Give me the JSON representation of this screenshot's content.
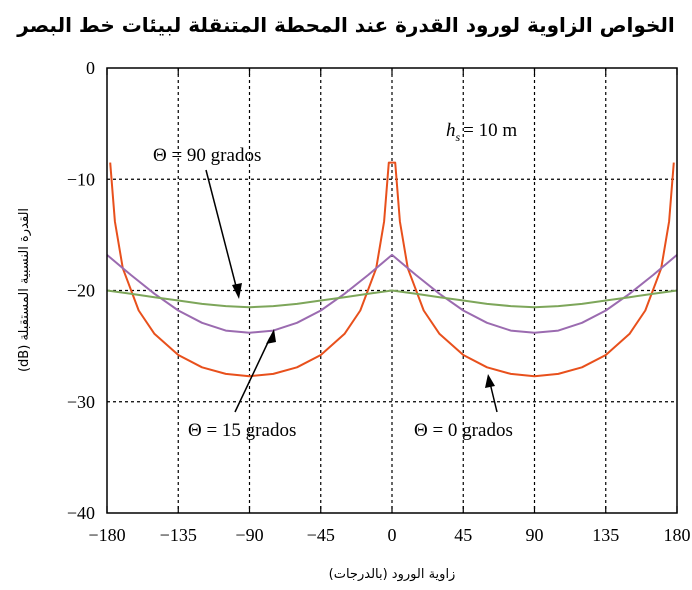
{
  "chart_data": {
    "type": "line",
    "title": "الخواص الزاوية لورود القدرة عند المحطة المتنقلة لبيئات خط البصر",
    "xlabel": "زاوية الورود (بالدرجات)",
    "ylabel": "القدرة النسبية المستقبلة (dB)",
    "xlim": [
      -180,
      180
    ],
    "ylim": [
      -40,
      0
    ],
    "xticks": [
      -180,
      -135,
      -90,
      -45,
      0,
      45,
      90,
      135,
      180
    ],
    "xtick_labels": [
      "−180",
      "−135",
      "−90",
      "−45",
      "0",
      "45",
      "90",
      "135",
      "180"
    ],
    "yticks": [
      0,
      -10,
      -20,
      -30,
      -40
    ],
    "ytick_labels": [
      "0",
      "−10",
      "−20",
      "−30",
      "−40"
    ],
    "grid": true,
    "series": [
      {
        "name": "Θ = 0 grados",
        "color": "#e8501c",
        "x": [
          -178,
          -175,
          -170,
          -160,
          -150,
          -135,
          -120,
          -105,
          -90,
          -75,
          -60,
          -45,
          -30,
          -20,
          -10,
          -5,
          -2,
          2,
          5,
          10,
          20,
          30,
          45,
          60,
          75,
          90,
          105,
          120,
          135,
          150,
          160,
          170,
          175,
          178
        ],
        "y": [
          -8.5,
          -13.8,
          -18.0,
          -21.8,
          -23.9,
          -25.8,
          -26.9,
          -27.5,
          -27.7,
          -27.5,
          -26.9,
          -25.8,
          -23.9,
          -21.8,
          -18.0,
          -13.8,
          -8.5,
          -8.5,
          -13.8,
          -18.0,
          -21.8,
          -23.9,
          -25.8,
          -26.9,
          -27.5,
          -27.7,
          -27.5,
          -26.9,
          -25.8,
          -23.9,
          -21.8,
          -18.0,
          -13.8,
          -8.5
        ]
      },
      {
        "name": "Θ = 15 grados",
        "color": "#9b6bb0",
        "x": [
          -180,
          -165,
          -150,
          -135,
          -120,
          -105,
          -90,
          -75,
          -60,
          -45,
          -30,
          -15,
          0,
          15,
          30,
          45,
          60,
          75,
          90,
          105,
          120,
          135,
          150,
          165,
          180
        ],
        "y": [
          -16.8,
          -18.6,
          -20.3,
          -21.8,
          -22.9,
          -23.6,
          -23.8,
          -23.6,
          -22.9,
          -21.8,
          -20.3,
          -18.6,
          -16.8,
          -18.6,
          -20.3,
          -21.8,
          -22.9,
          -23.6,
          -23.8,
          -23.6,
          -22.9,
          -21.8,
          -20.3,
          -18.6,
          -16.8
        ]
      },
      {
        "name": "Θ = 90 grados",
        "color": "#7da65a",
        "x": [
          -180,
          -165,
          -150,
          -135,
          -120,
          -105,
          -90,
          -75,
          -60,
          -45,
          -30,
          -15,
          0,
          15,
          30,
          45,
          60,
          75,
          90,
          105,
          120,
          135,
          150,
          165,
          180
        ],
        "y": [
          -20.0,
          -20.3,
          -20.6,
          -20.9,
          -21.2,
          -21.4,
          -21.5,
          -21.4,
          -21.2,
          -20.9,
          -20.6,
          -20.3,
          -20.0,
          -20.3,
          -20.6,
          -20.9,
          -21.2,
          -21.4,
          -21.5,
          -21.4,
          -21.2,
          -20.9,
          -20.6,
          -20.3,
          -20.0
        ]
      }
    ],
    "annotations": [
      {
        "text": "Θ = 90 grados",
        "points_to": {
          "x": -90,
          "y": -21.5
        }
      },
      {
        "text": "Θ = 15 grados",
        "points_to": {
          "x": -70,
          "y": -23.0
        }
      },
      {
        "text": "Θ = 0 grados",
        "points_to": {
          "x": 45,
          "y": -27.0
        }
      }
    ],
    "height_label": {
      "symbol": "h",
      "subscript": "s",
      "value": "= 10 m"
    }
  }
}
